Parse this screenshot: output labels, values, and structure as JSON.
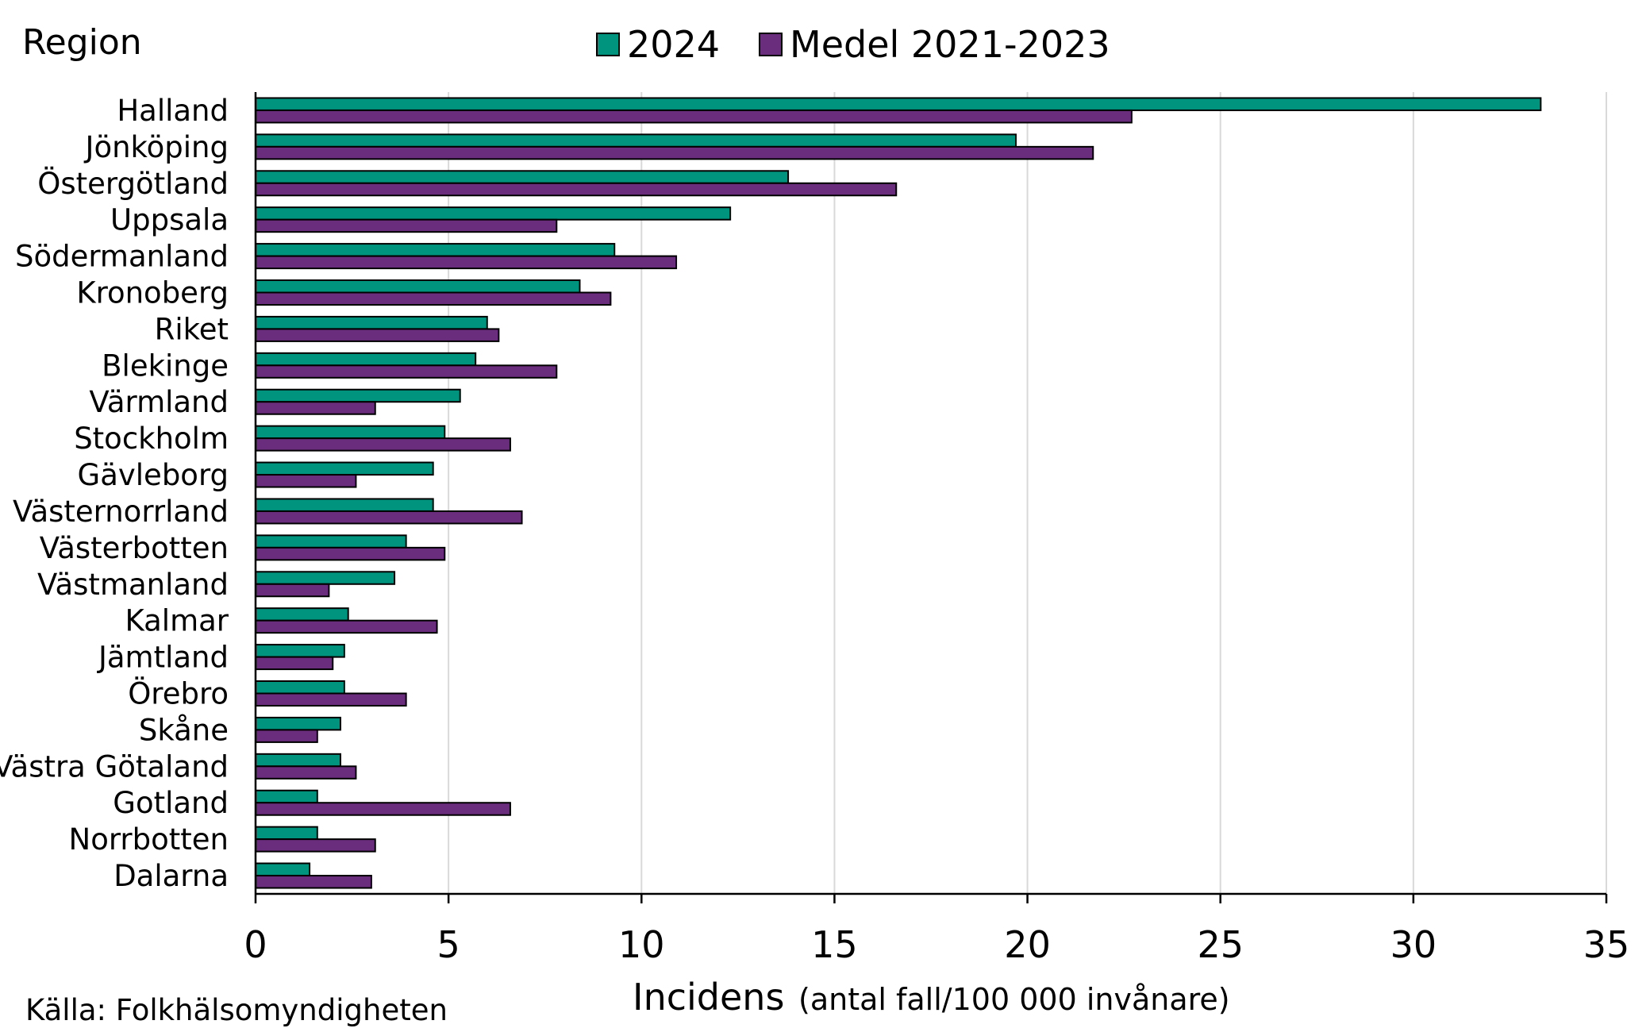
{
  "chart_data": {
    "type": "bar",
    "orientation": "horizontal",
    "title": "",
    "ylabel": "Region",
    "xlabel_main": "Incidens",
    "xlabel_sub": "(antal fall/100 000 invånare)",
    "source": "Källa: Folkhälsomyndigheten",
    "xlim": [
      0,
      35
    ],
    "xticks": [
      "0",
      "5",
      "10",
      "15",
      "20",
      "25",
      "30",
      "35"
    ],
    "grid": true,
    "legend_position": "top-center",
    "categories": [
      "Halland",
      "Jönköping",
      "Östergötland",
      "Uppsala",
      "Södermanland",
      "Kronoberg",
      "Riket",
      "Blekinge",
      "Värmland",
      "Stockholm",
      "Gävleborg",
      "Västernorrland",
      "Västerbotten",
      "Västmanland",
      "Kalmar",
      "Jämtland",
      "Örebro",
      "Skåne",
      "Västra Götaland",
      "Gotland",
      "Norrbotten",
      "Dalarna"
    ],
    "series": [
      {
        "name": "2024",
        "color": "#00947f",
        "values": [
          33.3,
          19.7,
          13.8,
          12.3,
          9.3,
          8.4,
          6.0,
          5.7,
          5.3,
          4.9,
          4.6,
          4.6,
          3.9,
          3.6,
          2.4,
          2.3,
          2.3,
          2.2,
          2.2,
          1.6,
          1.6,
          1.4
        ]
      },
      {
        "name": "Medel 2021-2023",
        "color": "#6a2c7c",
        "values": [
          22.7,
          21.7,
          16.6,
          7.8,
          10.9,
          9.2,
          6.3,
          7.8,
          3.1,
          6.6,
          2.6,
          6.9,
          4.9,
          1.9,
          4.7,
          2.0,
          3.9,
          1.6,
          2.6,
          6.6,
          3.1,
          3.0
        ]
      }
    ]
  }
}
